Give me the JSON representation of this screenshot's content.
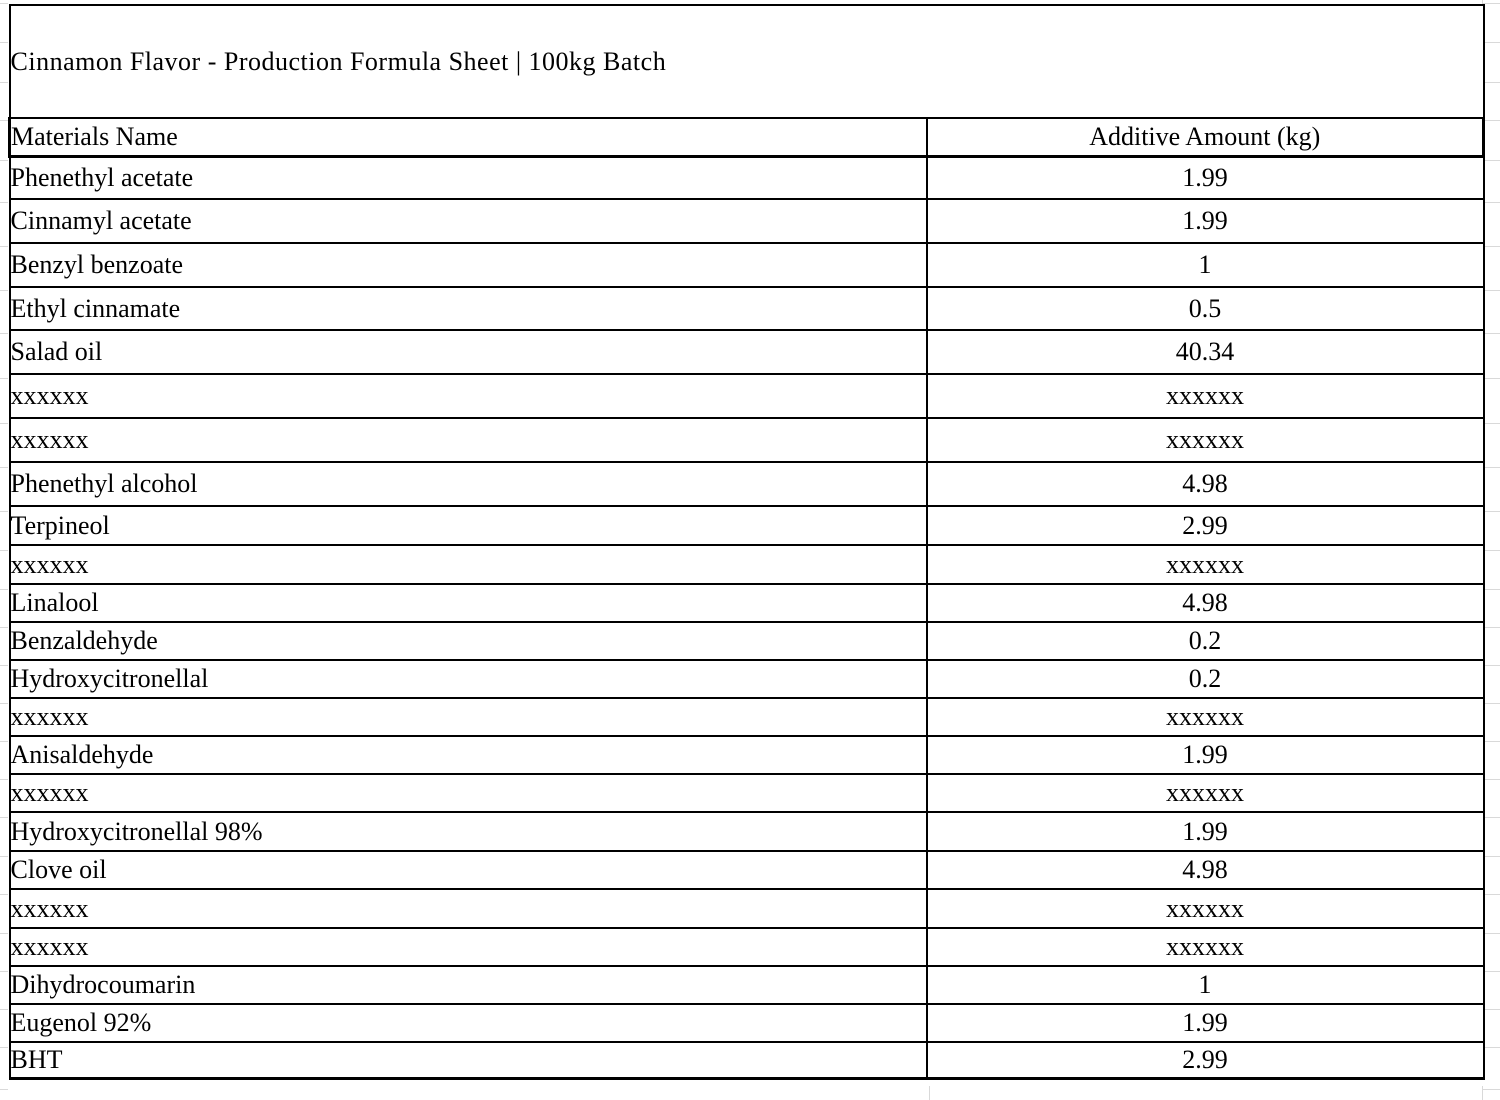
{
  "sheet": {
    "title": "Cinnamon Flavor - Production Formula Sheet | 100kg Batch",
    "columns": [
      "Materials Name",
      "Additive Amount (kg)"
    ],
    "rows": [
      {
        "name": "Phenethyl acetate",
        "amount": "1.99"
      },
      {
        "name": "Cinnamyl acetate",
        "amount": "1.99"
      },
      {
        "name": "Benzyl benzoate",
        "amount": "1"
      },
      {
        "name": "Ethyl cinnamate",
        "amount": "0.5"
      },
      {
        "name": "Salad oil",
        "amount": "40.34"
      },
      {
        "name": "xxxxxx",
        "amount": "xxxxxx"
      },
      {
        "name": "xxxxxx",
        "amount": "xxxxxx"
      },
      {
        "name": "Phenethyl alcohol",
        "amount": "4.98"
      },
      {
        "name": "Terpineol",
        "amount": "2.99"
      },
      {
        "name": "xxxxxx",
        "amount": "xxxxxx"
      },
      {
        "name": "Linalool",
        "amount": "4.98"
      },
      {
        "name": "Benzaldehyde",
        "amount": "0.2"
      },
      {
        "name": "Hydroxycitronellal",
        "amount": "0.2"
      },
      {
        "name": "xxxxxx",
        "amount": "xxxxxx"
      },
      {
        "name": "Anisaldehyde",
        "amount": "1.99"
      },
      {
        "name": "xxxxxx",
        "amount": "xxxxxx"
      },
      {
        "name": "Hydroxycitronellal 98%",
        "amount": "1.99"
      },
      {
        "name": "Clove oil",
        "amount": "4.98"
      },
      {
        "name": "xxxxxx",
        "amount": "xxxxxx"
      },
      {
        "name": "xxxxxx",
        "amount": "xxxxxx"
      },
      {
        "name": "Dihydrocoumarin",
        "amount": "1"
      },
      {
        "name": "Eugenol 92%",
        "amount": "1.99"
      },
      {
        "name": "BHT",
        "amount": "2.99"
      }
    ],
    "colors": {
      "banner_bg": "#d8d8d8",
      "border": "#000000",
      "gridline": "#d9d9d9"
    }
  }
}
